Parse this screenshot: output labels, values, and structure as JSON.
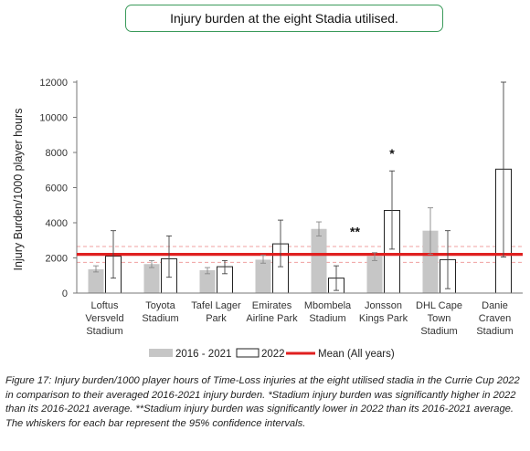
{
  "chart_data": {
    "type": "bar",
    "title": "Injury burden at the eight Stadia utilised.",
    "ylabel": "Injury Burden/1000 player hours",
    "xlabel": "",
    "ylim": [
      0,
      12000
    ],
    "yticks": [
      "0",
      "2000",
      "4000",
      "6000",
      "8000",
      "10000",
      "12000"
    ],
    "ytick_values": [
      0,
      2000,
      4000,
      6000,
      8000,
      10000,
      12000
    ],
    "grid": false,
    "legend_position": "bottom",
    "categories": [
      [
        "Loftus",
        "Versveld",
        "Stadium"
      ],
      [
        "Toyota",
        "Stadium"
      ],
      [
        "Tafel Lager",
        "Park"
      ],
      [
        "Emirates",
        "Airline Park"
      ],
      [
        "Mbombela",
        "Stadium"
      ],
      [
        "Jonsson",
        "Kings Park"
      ],
      [
        "DHL Cape",
        "Town",
        "Stadium"
      ],
      [
        "Danie",
        "Craven",
        "Stadium"
      ]
    ],
    "series": [
      {
        "name": "2016 - 2021",
        "color": "#c6c6c6",
        "values": [
          1350,
          1650,
          1300,
          1900,
          3650,
          2100,
          3550,
          null
        ],
        "ci_low": [
          1200,
          1450,
          1100,
          1700,
          3250,
          1850,
          2200,
          null
        ],
        "ci_high": [
          1550,
          1850,
          1450,
          2150,
          4050,
          2300,
          4850,
          null
        ]
      },
      {
        "name": "2022",
        "color": "#ffffff",
        "values": [
          2100,
          1950,
          1500,
          2800,
          850,
          4700,
          1900,
          7050
        ],
        "ci_low": [
          850,
          900,
          1100,
          1500,
          150,
          2500,
          250,
          2050
        ],
        "ci_high": [
          3550,
          3250,
          1850,
          4150,
          1550,
          6950,
          3550,
          12000
        ]
      }
    ],
    "mean": {
      "name": "Mean (All years)",
      "value": 2200,
      "color": "#e02020",
      "ci": [
        1750,
        2650
      ]
    },
    "annotations": [
      {
        "category_index": 5,
        "text": "*"
      },
      {
        "category_index": 4,
        "text": "**"
      }
    ]
  },
  "caption": "Figure 17: Injury burden/1000 player hours of Time-Loss injuries at the eight utilised stadia in the Currie Cup 2022 in comparison to their averaged 2016-2021 injury burden. *Stadium injury burden was significantly higher in 2022 than its 2016-2021 average. **Stadium injury burden was significantly lower in 2022 than its 2016-2021 average. The whiskers for each bar represent the 95% confidence intervals."
}
